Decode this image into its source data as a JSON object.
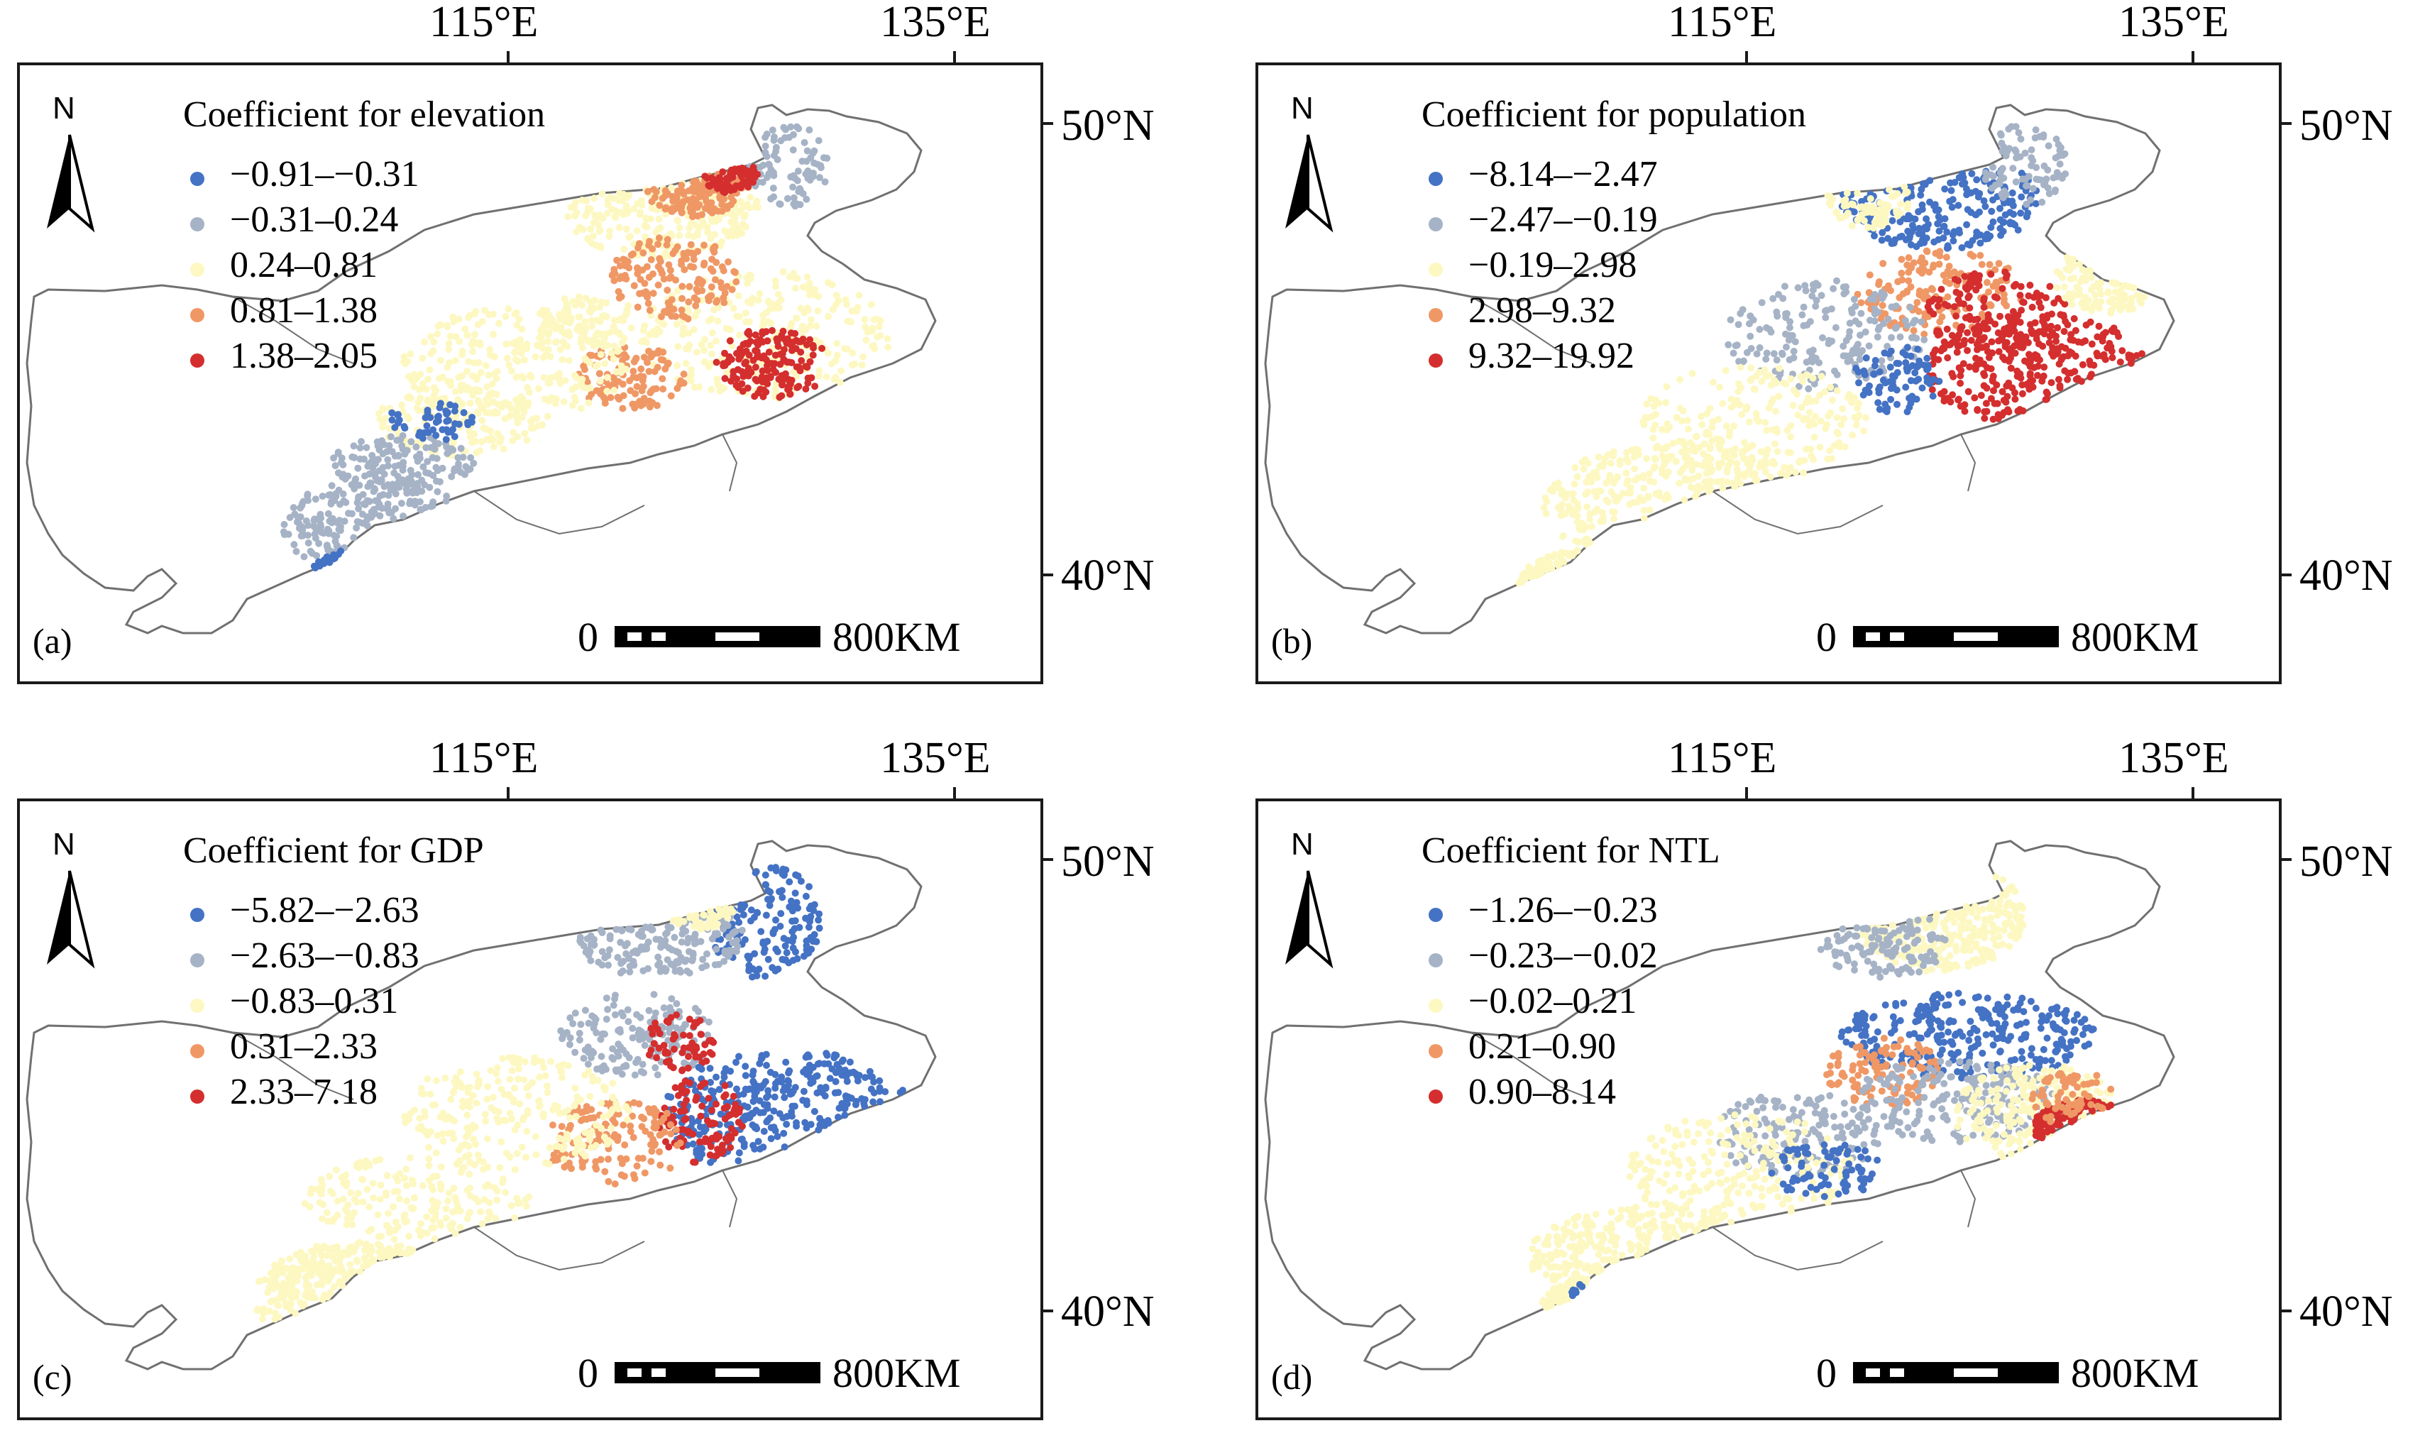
{
  "figure": {
    "longitude_labels": [
      "115°E",
      "135°E"
    ],
    "latitude_labels": [
      "50°N",
      "40°N"
    ],
    "north_label": "N",
    "scale_bar": {
      "start_label": "0",
      "end_label": "800KM"
    }
  },
  "colors": {
    "class1": "#4472c4",
    "class2": "#a6b3c6",
    "class3": "#fdf8c2",
    "class4": "#ef9866",
    "class5": "#d42e2e",
    "boundary": "#707070"
  },
  "panels": [
    {
      "id": "a",
      "letter": "(a)",
      "title": "Coefficient for elevation",
      "legend": [
        "−0.91–−0.31",
        "−0.31–0.24",
        "0.24–0.81",
        "0.81–1.38",
        "1.38–2.05"
      ]
    },
    {
      "id": "b",
      "letter": "(b)",
      "title": "Coefficient for population",
      "legend": [
        "−8.14–−2.47",
        "−2.47–−0.19",
        "−0.19–2.98",
        "2.98–9.32",
        "9.32–19.92"
      ]
    },
    {
      "id": "c",
      "letter": "(c)",
      "title": "Coefficient for GDP",
      "legend": [
        "−5.82–−2.63",
        "−2.63–−0.83",
        "−0.83–0.31",
        "0.31–2.33",
        "2.33–7.18"
      ]
    },
    {
      "id": "d",
      "letter": "(d)",
      "title": "Coefficient for NTL",
      "legend": [
        "−1.26–−0.23",
        "−0.23–−0.02",
        "−0.02–0.21",
        "0.21–0.90",
        "0.90–8.14"
      ]
    }
  ]
}
